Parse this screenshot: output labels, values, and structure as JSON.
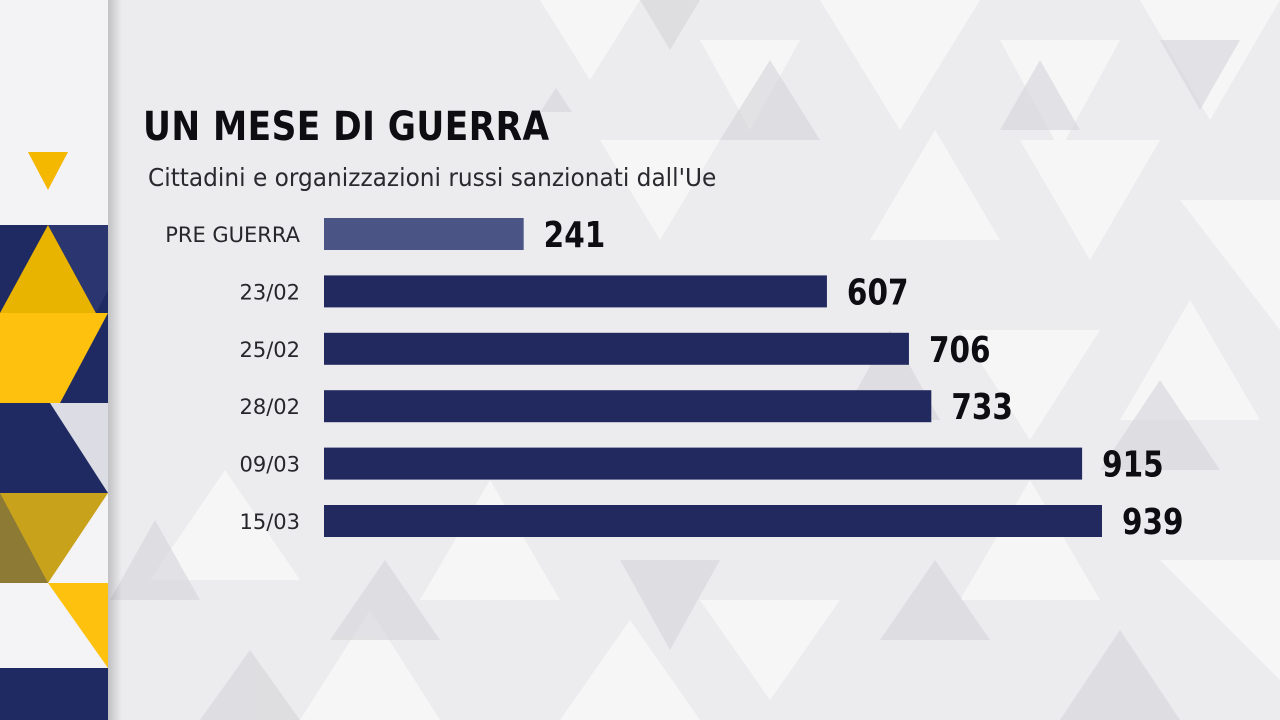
{
  "header": {
    "title": "UN MESE DI GUERRA",
    "subtitle": "Cittadini e organizzazioni russi sanzionati dall'Ue"
  },
  "colors": {
    "bar": "#22295f",
    "bar_first": "#4a5585",
    "accent_yellow": "#f5b800",
    "strip_navy": "#1f2a63",
    "background": "#ececee"
  },
  "chart_data": {
    "type": "bar",
    "orientation": "horizontal",
    "categories": [
      "PRE GUERRA",
      "23/02",
      "25/02",
      "28/02",
      "09/03",
      "15/03"
    ],
    "values": [
      241,
      607,
      706,
      733,
      915,
      939
    ],
    "title": "UN MESE DI GUERRA",
    "subtitle": "Cittadini e organizzazioni russi sanzionati dall'Ue",
    "xlabel": "",
    "ylabel": "",
    "grid": false,
    "legend": "none"
  }
}
